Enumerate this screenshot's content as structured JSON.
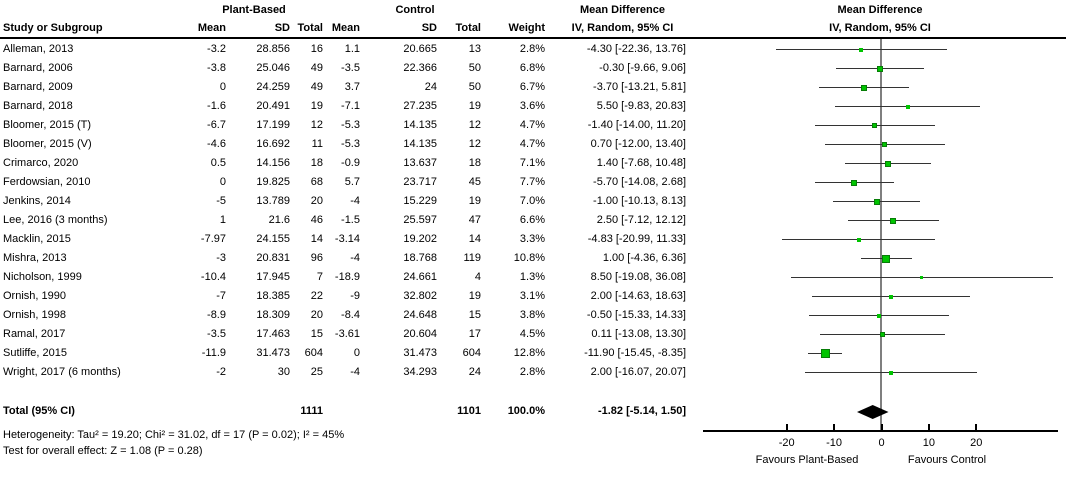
{
  "header": {
    "study": "Study or Subgroup",
    "pb_group": "Plant-Based",
    "c_group": "Control",
    "mean": "Mean",
    "sd": "SD",
    "total": "Total",
    "weight": "Weight",
    "md": "Mean Difference",
    "method": "IV, Random, 95% CI"
  },
  "chart_data": {
    "type": "forest",
    "effect_measure": "Mean Difference",
    "method": "IV, Random, 95% CI",
    "groups": [
      "Plant-Based",
      "Control"
    ],
    "x_axis": {
      "ticks": [
        -20,
        -10,
        0,
        10,
        20
      ],
      "range": [
        -25,
        38
      ],
      "label_left": "Favours Plant-Based",
      "label_right": "Favours Control"
    },
    "studies": [
      {
        "name": "Alleman, 2013",
        "pb_mean": "-3.2",
        "pb_sd": "28.856",
        "pb_total": "16",
        "c_mean": "1.1",
        "c_sd": "20.665",
        "c_total": "13",
        "weight": "2.8%",
        "w": 2.8,
        "ci_label": "-4.30 [-22.36, 13.76]",
        "md": -4.3,
        "lo": -22.36,
        "hi": 13.76
      },
      {
        "name": "Barnard, 2006",
        "pb_mean": "-3.8",
        "pb_sd": "25.046",
        "pb_total": "49",
        "c_mean": "-3.5",
        "c_sd": "22.366",
        "c_total": "50",
        "weight": "6.8%",
        "w": 6.8,
        "ci_label": "-0.30 [-9.66, 9.06]",
        "md": -0.3,
        "lo": -9.66,
        "hi": 9.06
      },
      {
        "name": "Barnard, 2009",
        "pb_mean": "0",
        "pb_sd": "24.259",
        "pb_total": "49",
        "c_mean": "3.7",
        "c_sd": "24",
        "c_total": "50",
        "weight": "6.7%",
        "w": 6.7,
        "ci_label": "-3.70 [-13.21, 5.81]",
        "md": -3.7,
        "lo": -13.21,
        "hi": 5.81
      },
      {
        "name": "Barnard, 2018",
        "pb_mean": "-1.6",
        "pb_sd": "20.491",
        "pb_total": "19",
        "c_mean": "-7.1",
        "c_sd": "27.235",
        "c_total": "19",
        "weight": "3.6%",
        "w": 3.6,
        "ci_label": "5.50 [-9.83, 20.83]",
        "md": 5.5,
        "lo": -9.83,
        "hi": 20.83
      },
      {
        "name": "Bloomer, 2015 (T)",
        "pb_mean": "-6.7",
        "pb_sd": "17.199",
        "pb_total": "12",
        "c_mean": "-5.3",
        "c_sd": "14.135",
        "c_total": "12",
        "weight": "4.7%",
        "w": 4.7,
        "ci_label": "-1.40 [-14.00, 11.20]",
        "md": -1.4,
        "lo": -14.0,
        "hi": 11.2
      },
      {
        "name": "Bloomer, 2015 (V)",
        "pb_mean": "-4.6",
        "pb_sd": "16.692",
        "pb_total": "11",
        "c_mean": "-5.3",
        "c_sd": "14.135",
        "c_total": "12",
        "weight": "4.7%",
        "w": 4.7,
        "ci_label": "0.70 [-12.00, 13.40]",
        "md": 0.7,
        "lo": -12.0,
        "hi": 13.4
      },
      {
        "name": "Crimarco, 2020",
        "pb_mean": "0.5",
        "pb_sd": "14.156",
        "pb_total": "18",
        "c_mean": "-0.9",
        "c_sd": "13.637",
        "c_total": "18",
        "weight": "7.1%",
        "w": 7.1,
        "ci_label": "1.40 [-7.68, 10.48]",
        "md": 1.4,
        "lo": -7.68,
        "hi": 10.48
      },
      {
        "name": "Ferdowsian, 2010",
        "pb_mean": "0",
        "pb_sd": "19.825",
        "pb_total": "68",
        "c_mean": "5.7",
        "c_sd": "23.717",
        "c_total": "45",
        "weight": "7.7%",
        "w": 7.7,
        "ci_label": "-5.70 [-14.08, 2.68]",
        "md": -5.7,
        "lo": -14.08,
        "hi": 2.68
      },
      {
        "name": "Jenkins, 2014",
        "pb_mean": "-5",
        "pb_sd": "13.789",
        "pb_total": "20",
        "c_mean": "-4",
        "c_sd": "15.229",
        "c_total": "19",
        "weight": "7.0%",
        "w": 7.0,
        "ci_label": "-1.00 [-10.13, 8.13]",
        "md": -1.0,
        "lo": -10.13,
        "hi": 8.13
      },
      {
        "name": "Lee, 2016 (3 months)",
        "pb_mean": "1",
        "pb_sd": "21.6",
        "pb_total": "46",
        "c_mean": "-1.5",
        "c_sd": "25.597",
        "c_total": "47",
        "weight": "6.6%",
        "w": 6.6,
        "ci_label": "2.50 [-7.12, 12.12]",
        "md": 2.5,
        "lo": -7.12,
        "hi": 12.12
      },
      {
        "name": "Macklin, 2015",
        "pb_mean": "-7.97",
        "pb_sd": "24.155",
        "pb_total": "14",
        "c_mean": "-3.14",
        "c_sd": "19.202",
        "c_total": "14",
        "weight": "3.3%",
        "w": 3.3,
        "ci_label": "-4.83 [-20.99, 11.33]",
        "md": -4.83,
        "lo": -20.99,
        "hi": 11.33
      },
      {
        "name": "Mishra, 2013",
        "pb_mean": "-3",
        "pb_sd": "20.831",
        "pb_total": "96",
        "c_mean": "-4",
        "c_sd": "18.768",
        "c_total": "119",
        "weight": "10.8%",
        "w": 10.8,
        "ci_label": "1.00 [-4.36, 6.36]",
        "md": 1.0,
        "lo": -4.36,
        "hi": 6.36
      },
      {
        "name": "Nicholson, 1999",
        "pb_mean": "-10.4",
        "pb_sd": "17.945",
        "pb_total": "7",
        "c_mean": "-18.9",
        "c_sd": "24.661",
        "c_total": "4",
        "weight": "1.3%",
        "w": 1.3,
        "ci_label": "8.50 [-19.08, 36.08]",
        "md": 8.5,
        "lo": -19.08,
        "hi": 36.08
      },
      {
        "name": "Ornish, 1990",
        "pb_mean": "-7",
        "pb_sd": "18.385",
        "pb_total": "22",
        "c_mean": "-9",
        "c_sd": "32.802",
        "c_total": "19",
        "weight": "3.1%",
        "w": 3.1,
        "ci_label": "2.00 [-14.63, 18.63]",
        "md": 2.0,
        "lo": -14.63,
        "hi": 18.63
      },
      {
        "name": "Ornish, 1998",
        "pb_mean": "-8.9",
        "pb_sd": "18.309",
        "pb_total": "20",
        "c_mean": "-8.4",
        "c_sd": "24.648",
        "c_total": "15",
        "weight": "3.8%",
        "w": 3.8,
        "ci_label": "-0.50 [-15.33, 14.33]",
        "md": -0.5,
        "lo": -15.33,
        "hi": 14.33
      },
      {
        "name": "Ramal, 2017",
        "pb_mean": "-3.5",
        "pb_sd": "17.463",
        "pb_total": "15",
        "c_mean": "-3.61",
        "c_sd": "20.604",
        "c_total": "17",
        "weight": "4.5%",
        "w": 4.5,
        "ci_label": "0.11 [-13.08, 13.30]",
        "md": 0.11,
        "lo": -13.08,
        "hi": 13.3
      },
      {
        "name": "Sutliffe, 2015",
        "pb_mean": "-11.9",
        "pb_sd": "31.473",
        "pb_total": "604",
        "c_mean": "0",
        "c_sd": "31.473",
        "c_total": "604",
        "weight": "12.8%",
        "w": 12.8,
        "ci_label": "-11.90 [-15.45, -8.35]",
        "md": -11.9,
        "lo": -15.45,
        "hi": -8.35
      },
      {
        "name": "Wright, 2017 (6 months)",
        "pb_mean": "-2",
        "pb_sd": "30",
        "pb_total": "25",
        "c_mean": "-4",
        "c_sd": "34.293",
        "c_total": "24",
        "weight": "2.8%",
        "w": 2.8,
        "ci_label": "2.00 [-16.07, 20.07]",
        "md": 2.0,
        "lo": -16.07,
        "hi": 20.07
      }
    ],
    "total": {
      "label": "Total (95% CI)",
      "pb_total": "1111",
      "c_total": "1101",
      "weight": "100.0%",
      "ci_label": "-1.82 [-5.14, 1.50]",
      "md": -1.82,
      "lo": -5.14,
      "hi": 1.5
    },
    "heterogeneity": "Heterogeneity: Tau² = 19.20; Chi² = 31.02, df = 17 (P = 0.02); I² = 45%",
    "overall_effect": "Test for overall effect: Z = 1.08 (P = 0.28)"
  },
  "colors": {
    "square_fill": "#00c400",
    "square_border": "#077d07",
    "ci_line": "#333333",
    "zero_line": "#7f7f7f",
    "diamond": "#000000"
  }
}
